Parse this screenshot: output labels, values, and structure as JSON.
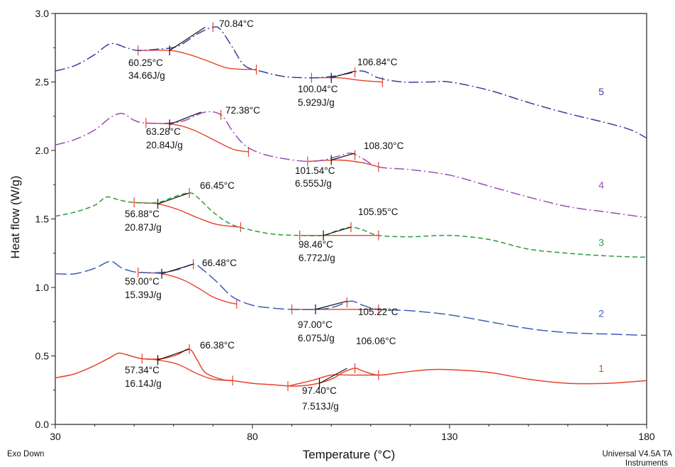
{
  "chart_data": {
    "type": "line",
    "xlabel": "Temperature (°C)",
    "ylabel": "Heat flow (W/g)",
    "xlim": [
      30,
      180
    ],
    "ylim": [
      0.0,
      3.0
    ],
    "x_ticks": [
      "30",
      "80",
      "130",
      "180"
    ],
    "y_ticks": [
      "0.0",
      "0.5",
      "1.0",
      "1.5",
      "2.0",
      "2.5",
      "3.0"
    ],
    "footer_left": "Exo Down",
    "footer_right": [
      "Universal V4.5A TA",
      "Instruments"
    ],
    "grid": false,
    "series": [
      {
        "name": "1",
        "color": "#e8412c",
        "dash": "solid",
        "points": [
          [
            30,
            0.34
          ],
          [
            35,
            0.37
          ],
          [
            40,
            0.43
          ],
          [
            44,
            0.49
          ],
          [
            46,
            0.52
          ],
          [
            48,
            0.51
          ],
          [
            52,
            0.48
          ],
          [
            57,
            0.48
          ],
          [
            61,
            0.51
          ],
          [
            64,
            0.55
          ],
          [
            66,
            0.47
          ],
          [
            68,
            0.38
          ],
          [
            72,
            0.33
          ],
          [
            75,
            0.32
          ],
          [
            80,
            0.3
          ],
          [
            85,
            0.29
          ],
          [
            90,
            0.28
          ],
          [
            95,
            0.29
          ],
          [
            100,
            0.33
          ],
          [
            103,
            0.38
          ],
          [
            106,
            0.41
          ],
          [
            108,
            0.39
          ],
          [
            112,
            0.36
          ],
          [
            118,
            0.38
          ],
          [
            125,
            0.4
          ],
          [
            130,
            0.4
          ],
          [
            140,
            0.38
          ],
          [
            150,
            0.33
          ],
          [
            160,
            0.3
          ],
          [
            170,
            0.3
          ],
          [
            180,
            0.32
          ]
        ]
      },
      {
        "name": "2",
        "color": "#3f5fb8",
        "dash": "long-dash",
        "points": [
          [
            30,
            1.1
          ],
          [
            35,
            1.1
          ],
          [
            40,
            1.14
          ],
          [
            44,
            1.19
          ],
          [
            47,
            1.14
          ],
          [
            51,
            1.11
          ],
          [
            57,
            1.11
          ],
          [
            61,
            1.13
          ],
          [
            65,
            1.17
          ],
          [
            67,
            1.14
          ],
          [
            71,
            1.04
          ],
          [
            75,
            0.93
          ],
          [
            80,
            0.87
          ],
          [
            85,
            0.85
          ],
          [
            90,
            0.84
          ],
          [
            97,
            0.84
          ],
          [
            101,
            0.86
          ],
          [
            105,
            0.9
          ],
          [
            108,
            0.87
          ],
          [
            112,
            0.84
          ],
          [
            120,
            0.83
          ],
          [
            130,
            0.8
          ],
          [
            140,
            0.75
          ],
          [
            150,
            0.7
          ],
          [
            160,
            0.67
          ],
          [
            170,
            0.66
          ],
          [
            180,
            0.65
          ]
        ]
      },
      {
        "name": "3",
        "color": "#2e9a3e",
        "dash": "dash",
        "points": [
          [
            30,
            1.52
          ],
          [
            35,
            1.55
          ],
          [
            40,
            1.6
          ],
          [
            43,
            1.66
          ],
          [
            46,
            1.64
          ],
          [
            50,
            1.62
          ],
          [
            56,
            1.62
          ],
          [
            60,
            1.66
          ],
          [
            64,
            1.69
          ],
          [
            66,
            1.66
          ],
          [
            70,
            1.55
          ],
          [
            74,
            1.47
          ],
          [
            78,
            1.43
          ],
          [
            85,
            1.39
          ],
          [
            92,
            1.38
          ],
          [
            98,
            1.38
          ],
          [
            101,
            1.41
          ],
          [
            105,
            1.44
          ],
          [
            108,
            1.42
          ],
          [
            112,
            1.38
          ],
          [
            120,
            1.37
          ],
          [
            130,
            1.38
          ],
          [
            140,
            1.35
          ],
          [
            150,
            1.28
          ],
          [
            160,
            1.25
          ],
          [
            170,
            1.23
          ],
          [
            180,
            1.22
          ]
        ]
      },
      {
        "name": "4",
        "color": "#9a4db8",
        "dash": "dash-dot",
        "points": [
          [
            30,
            2.04
          ],
          [
            35,
            2.08
          ],
          [
            40,
            2.15
          ],
          [
            44,
            2.24
          ],
          [
            47,
            2.27
          ],
          [
            50,
            2.22
          ],
          [
            53,
            2.2
          ],
          [
            59,
            2.2
          ],
          [
            63,
            2.22
          ],
          [
            68,
            2.28
          ],
          [
            72,
            2.26
          ],
          [
            75,
            2.14
          ],
          [
            78,
            2.04
          ],
          [
            82,
            1.98
          ],
          [
            88,
            1.94
          ],
          [
            94,
            1.92
          ],
          [
            98,
            1.93
          ],
          [
            102,
            1.96
          ],
          [
            105,
            1.98
          ],
          [
            108,
            1.94
          ],
          [
            112,
            1.88
          ],
          [
            120,
            1.86
          ],
          [
            130,
            1.82
          ],
          [
            140,
            1.74
          ],
          [
            150,
            1.66
          ],
          [
            160,
            1.59
          ],
          [
            170,
            1.55
          ],
          [
            180,
            1.51
          ]
        ]
      },
      {
        "name": "5",
        "color": "#3a3f9a",
        "dash": "dash-dot",
        "points": [
          [
            30,
            2.58
          ],
          [
            35,
            2.62
          ],
          [
            40,
            2.7
          ],
          [
            44,
            2.78
          ],
          [
            48,
            2.75
          ],
          [
            51,
            2.73
          ],
          [
            56,
            2.74
          ],
          [
            61,
            2.76
          ],
          [
            66,
            2.85
          ],
          [
            70,
            2.9
          ],
          [
            72,
            2.88
          ],
          [
            75,
            2.75
          ],
          [
            78,
            2.62
          ],
          [
            82,
            2.58
          ],
          [
            88,
            2.54
          ],
          [
            95,
            2.53
          ],
          [
            100,
            2.54
          ],
          [
            104,
            2.56
          ],
          [
            108,
            2.58
          ],
          [
            112,
            2.53
          ],
          [
            118,
            2.5
          ],
          [
            125,
            2.5
          ],
          [
            130,
            2.5
          ],
          [
            140,
            2.44
          ],
          [
            150,
            2.35
          ],
          [
            160,
            2.27
          ],
          [
            170,
            2.2
          ],
          [
            176,
            2.15
          ],
          [
            180,
            2.09
          ]
        ]
      }
    ],
    "annotations": [
      {
        "series": "1",
        "peak": "66.38°C",
        "onset": "57.34°C",
        "enthalpy": "16.14J/g"
      },
      {
        "series": "1",
        "peak": "106.06°C",
        "onset": "97.40°C",
        "enthalpy": "7.513J/g"
      },
      {
        "series": "2",
        "peak": "66.48°C",
        "onset": "59.00°C",
        "enthalpy": "15.39J/g"
      },
      {
        "series": "2",
        "peak": "105.22°C",
        "onset": "97.00°C",
        "enthalpy": "6.075J/g"
      },
      {
        "series": "3",
        "peak": "66.45°C",
        "onset": "56.88°C",
        "enthalpy": "20.87J/g"
      },
      {
        "series": "3",
        "peak": "105.95°C",
        "onset": "98.46°C",
        "enthalpy": "6.772J/g"
      },
      {
        "series": "4",
        "peak": "72.38°C",
        "onset": "63.28°C",
        "enthalpy": "20.84J/g"
      },
      {
        "series": "4",
        "peak": "108.30°C",
        "onset": "101.54°C",
        "enthalpy": "6.555J/g"
      },
      {
        "series": "5",
        "peak": "70.84°C",
        "onset": "60.25°C",
        "enthalpy": "34.66J/g"
      },
      {
        "series": "5",
        "peak": "106.84°C",
        "onset": "100.04°C",
        "enthalpy": "5.929J/g"
      }
    ],
    "baselines": [
      {
        "series": "1",
        "points": [
          [
            52,
            0.48
          ],
          [
            56,
            0.47
          ],
          [
            61,
            0.44
          ],
          [
            66,
            0.37
          ],
          [
            70,
            0.33
          ],
          [
            75,
            0.32
          ]
        ],
        "ticks_x": [
          52,
          75
        ]
      },
      {
        "series": "1",
        "points": [
          [
            89,
            0.28
          ],
          [
            95,
            0.32
          ],
          [
            100,
            0.36
          ],
          [
            105,
            0.36
          ],
          [
            112,
            0.36
          ]
        ],
        "ticks_x": [
          89,
          112
        ]
      },
      {
        "series": "2",
        "points": [
          [
            51,
            1.11
          ],
          [
            57,
            1.1
          ],
          [
            62,
            1.06
          ],
          [
            66,
            1.0
          ],
          [
            70,
            0.93
          ],
          [
            74,
            0.89
          ],
          [
            76,
            0.88
          ]
        ],
        "ticks_x": [
          51,
          76
        ]
      },
      {
        "series": "2",
        "points": [
          [
            90,
            0.84
          ],
          [
            100,
            0.84
          ],
          [
            112,
            0.84
          ]
        ],
        "ticks_x": [
          90,
          112
        ]
      },
      {
        "series": "3",
        "points": [
          [
            50,
            1.62
          ],
          [
            56,
            1.61
          ],
          [
            61,
            1.57
          ],
          [
            66,
            1.51
          ],
          [
            71,
            1.46
          ],
          [
            77,
            1.44
          ]
        ],
        "ticks_x": [
          50,
          77
        ]
      },
      {
        "series": "3",
        "points": [
          [
            92,
            1.38
          ],
          [
            100,
            1.38
          ],
          [
            112,
            1.38
          ]
        ],
        "ticks_x": [
          92,
          112
        ]
      },
      {
        "series": "4",
        "points": [
          [
            53,
            2.2
          ],
          [
            60,
            2.19
          ],
          [
            65,
            2.15
          ],
          [
            70,
            2.08
          ],
          [
            75,
            2.01
          ],
          [
            79,
            1.99
          ]
        ],
        "ticks_x": [
          53,
          79
        ]
      },
      {
        "series": "4",
        "points": [
          [
            94,
            1.92
          ],
          [
            102,
            1.93
          ],
          [
            108,
            1.91
          ],
          [
            112,
            1.88
          ]
        ],
        "ticks_x": [
          94,
          112
        ]
      },
      {
        "series": "5",
        "points": [
          [
            51,
            2.73
          ],
          [
            59,
            2.73
          ],
          [
            64,
            2.7
          ],
          [
            69,
            2.65
          ],
          [
            74,
            2.6
          ],
          [
            81,
            2.59
          ]
        ],
        "ticks_x": [
          51,
          81
        ]
      },
      {
        "series": "5",
        "points": [
          [
            95,
            2.53
          ],
          [
            102,
            2.53
          ],
          [
            108,
            2.51
          ],
          [
            113,
            2.5
          ]
        ],
        "ticks_x": [
          95,
          113
        ]
      }
    ],
    "tangents": [
      {
        "series": "1",
        "from": [
          56,
          0.47
        ],
        "to": [
          64,
          0.55
        ],
        "peak_x": 64
      },
      {
        "series": "1",
        "from": [
          97,
          0.3
        ],
        "to": [
          104,
          0.41
        ],
        "peak_x": 106
      },
      {
        "series": "2",
        "from": [
          57,
          1.1
        ],
        "to": [
          65,
          1.17
        ],
        "peak_x": 65
      },
      {
        "series": "2",
        "from": [
          96,
          0.84
        ],
        "to": [
          104,
          0.9
        ],
        "peak_x": 104
      },
      {
        "series": "3",
        "from": [
          56,
          1.61
        ],
        "to": [
          64,
          1.69
        ],
        "peak_x": 64
      },
      {
        "series": "3",
        "from": [
          98,
          1.38
        ],
        "to": [
          105,
          1.44
        ],
        "peak_x": 105
      },
      {
        "series": "4",
        "from": [
          59,
          2.19
        ],
        "to": [
          67,
          2.28
        ],
        "peak_x": 72
      },
      {
        "series": "4",
        "from": [
          100,
          1.93
        ],
        "to": [
          106,
          1.98
        ],
        "peak_x": 106
      },
      {
        "series": "5",
        "from": [
          59,
          2.73
        ],
        "to": [
          68,
          2.9
        ],
        "peak_x": 70
      },
      {
        "series": "5",
        "from": [
          100,
          2.53
        ],
        "to": [
          106,
          2.58
        ],
        "peak_x": 106
      }
    ]
  }
}
